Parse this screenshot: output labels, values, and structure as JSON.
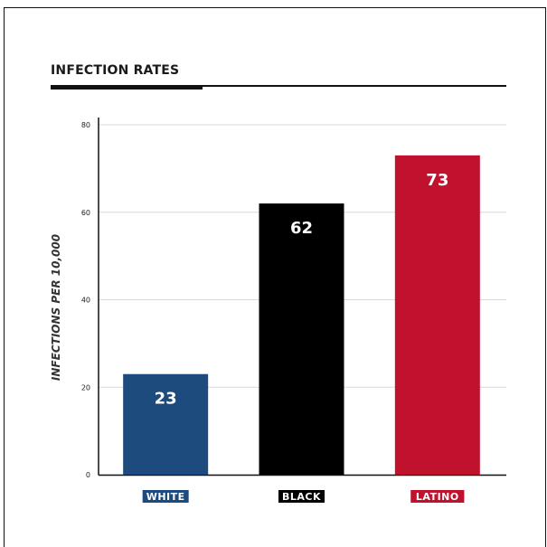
{
  "chart_data": {
    "type": "bar",
    "title": "INFECTION RATES",
    "xlabel": "",
    "ylabel": "INFECTIONS PER 10,000",
    "ylim": [
      0,
      80
    ],
    "yticks": [
      0,
      20,
      40,
      60,
      80
    ],
    "grid": true,
    "categories": [
      "WHITE",
      "BLACK",
      "LATINO"
    ],
    "values": [
      23,
      62,
      73
    ],
    "colors": [
      "#1e4b7d",
      "#000000",
      "#c0122e"
    ]
  }
}
